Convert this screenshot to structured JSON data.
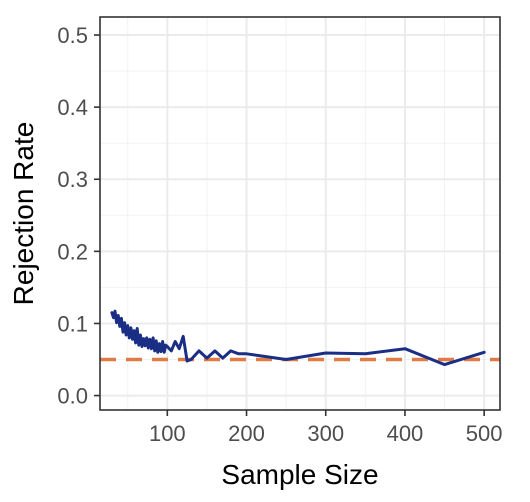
{
  "chart_data": {
    "type": "line",
    "xlabel": "Sample Size",
    "ylabel": "Rejection Rate",
    "xlim": [
      15,
      520
    ],
    "ylim": [
      -0.02,
      0.525
    ],
    "x_ticks": [
      100,
      200,
      300,
      400,
      500
    ],
    "x_tick_labels": [
      "100",
      "200",
      "300",
      "400",
      "500"
    ],
    "y_ticks": [
      0.0,
      0.1,
      0.2,
      0.3,
      0.4,
      0.5
    ],
    "y_tick_labels": [
      "0.0",
      "0.1",
      "0.2",
      "0.3",
      "0.4",
      "0.5"
    ],
    "grid": true,
    "legend": "none",
    "reference_line": {
      "y": 0.05,
      "color": "#E07B45",
      "style": "dashed"
    },
    "series": [
      {
        "color": "#1A2E86",
        "x": [
          30,
          32,
          34,
          36,
          38,
          40,
          42,
          44,
          46,
          48,
          50,
          52,
          54,
          56,
          58,
          60,
          62,
          64,
          66,
          68,
          70,
          72,
          74,
          76,
          78,
          80,
          82,
          84,
          86,
          88,
          90,
          92,
          94,
          96,
          98,
          100,
          105,
          110,
          115,
          120,
          125,
          130,
          140,
          150,
          160,
          170,
          180,
          190,
          200,
          250,
          300,
          350,
          400,
          450,
          500
        ],
        "values": [
          0.115,
          0.108,
          0.117,
          0.101,
          0.111,
          0.096,
          0.107,
          0.088,
          0.101,
          0.084,
          0.097,
          0.08,
          0.094,
          0.078,
          0.09,
          0.073,
          0.093,
          0.07,
          0.084,
          0.068,
          0.079,
          0.069,
          0.08,
          0.066,
          0.078,
          0.065,
          0.08,
          0.062,
          0.076,
          0.06,
          0.072,
          0.061,
          0.075,
          0.06,
          0.07,
          0.068,
          0.062,
          0.075,
          0.065,
          0.082,
          0.048,
          0.05,
          0.062,
          0.052,
          0.062,
          0.052,
          0.062,
          0.058,
          0.058,
          0.05,
          0.059,
          0.058,
          0.065,
          0.043,
          0.06
        ]
      }
    ]
  }
}
